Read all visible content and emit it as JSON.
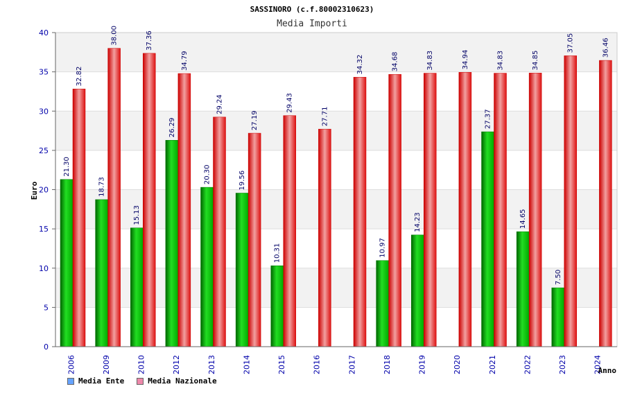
{
  "chart_data": {
    "type": "bar",
    "title": "SASSINORO (c.f.80002310623)",
    "subtitle": "Media Importi",
    "xlabel": "Anno",
    "ylabel": "Euro",
    "ylim": [
      0,
      40
    ],
    "yticks": [
      0,
      5,
      10,
      15,
      20,
      25,
      30,
      35,
      40
    ],
    "grid": true,
    "legend_position": "bottom-left",
    "categories": [
      "2006",
      "2009",
      "2010",
      "2012",
      "2013",
      "2014",
      "2015",
      "2016",
      "2017",
      "2018",
      "2019",
      "2020",
      "2021",
      "2022",
      "2023",
      "2024"
    ],
    "series": [
      {
        "name": "Media Ente",
        "color": "#00aa00",
        "legend_color": "#66a3ff",
        "values": [
          21.3,
          18.73,
          15.13,
          26.29,
          20.3,
          19.56,
          10.31,
          null,
          null,
          10.97,
          14.23,
          null,
          27.37,
          14.65,
          7.5,
          null
        ],
        "labels": [
          "21.30",
          "18.73",
          "15.13",
          "26.29",
          "20.30",
          "19.56",
          "10.31",
          null,
          null,
          "10.97",
          "14.23",
          null,
          "27.37",
          "14.65",
          "7.50",
          null
        ]
      },
      {
        "name": "Media Nazionale",
        "color": "#ee1111",
        "legend_color": "#ee88aa",
        "values": [
          32.82,
          38.0,
          37.36,
          34.79,
          29.24,
          27.19,
          29.43,
          27.71,
          34.32,
          34.68,
          34.83,
          34.94,
          34.83,
          34.85,
          37.05,
          36.46
        ],
        "labels": [
          "32.82",
          "38.00",
          "37.36",
          "34.79",
          "29.24",
          "27.19",
          "29.43",
          "27.71",
          "34.32",
          "34.68",
          "34.83",
          "34.94",
          "34.83",
          "34.85",
          "37.05",
          "36.46"
        ]
      }
    ]
  }
}
